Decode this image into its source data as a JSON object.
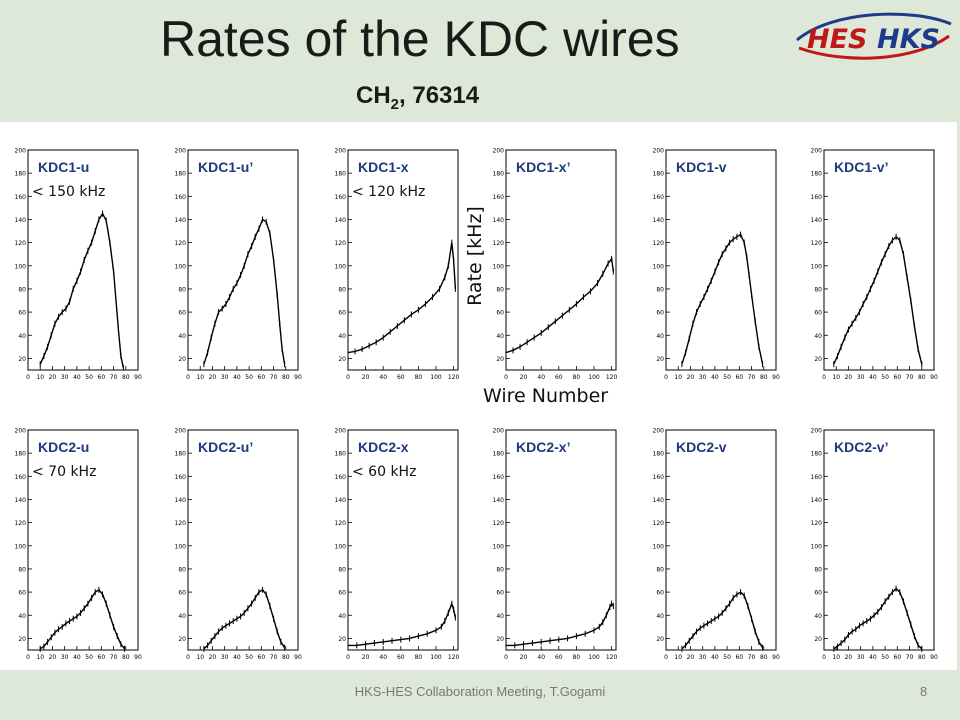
{
  "slide": {
    "title": "Rates of the KDC wires",
    "subtitle_main": "CH",
    "subtitle_sub": "2",
    "subtitle_rest": ", 76314",
    "logo": {
      "left_text": "HES",
      "right_text": "HKS",
      "colors": {
        "red": "#c01818",
        "blue": "#1e3a8a"
      }
    },
    "footer": "HKS-HES Collaboration Meeting, T.Gogami",
    "page_number": "8",
    "axis_ylabel": "Rate [kHz]",
    "axis_xlabel": "Wire Number"
  },
  "colors": {
    "background": "#dde8d8",
    "plot_bg": "#ffffff",
    "label_blue": "#1f3a7a",
    "line": "#000000"
  },
  "chart_data": [
    {
      "type": "line",
      "label": "KDC1-u",
      "note": "< 150 kHz",
      "xlim": [
        0,
        90
      ],
      "xticks": [
        0,
        10,
        20,
        30,
        40,
        50,
        60,
        70,
        80,
        90
      ],
      "ylim": [
        10,
        200
      ],
      "yticks": [
        20,
        40,
        60,
        80,
        100,
        120,
        140,
        160,
        180,
        200
      ],
      "x": [
        10,
        13,
        16,
        19,
        22,
        25,
        28,
        31,
        34,
        37,
        40,
        43,
        46,
        49,
        52,
        55,
        58,
        61,
        64,
        67,
        70,
        72,
        74,
        76,
        78
      ],
      "y": [
        15,
        22,
        30,
        40,
        50,
        56,
        60,
        63,
        69,
        80,
        87,
        95,
        105,
        113,
        120,
        130,
        140,
        145,
        139,
        120,
        95,
        70,
        45,
        22,
        12
      ]
    },
    {
      "type": "line",
      "label": "KDC1-u’",
      "note": "",
      "xlim": [
        0,
        90
      ],
      "xticks": [
        0,
        10,
        20,
        30,
        40,
        50,
        60,
        70,
        80,
        90
      ],
      "ylim": [
        10,
        200
      ],
      "yticks": [
        20,
        40,
        60,
        80,
        100,
        120,
        140,
        160,
        180,
        200
      ],
      "x": [
        13,
        16,
        19,
        22,
        25,
        28,
        31,
        34,
        37,
        40,
        43,
        46,
        49,
        52,
        55,
        58,
        61,
        64,
        67,
        70,
        73,
        75,
        77,
        79
      ],
      "y": [
        15,
        25,
        38,
        50,
        60,
        63,
        67,
        73,
        80,
        85,
        92,
        100,
        110,
        117,
        125,
        132,
        140,
        138,
        128,
        105,
        75,
        50,
        28,
        15
      ]
    },
    {
      "type": "line",
      "label": "KDC1-x",
      "note": "< 120 kHz",
      "xlim": [
        0,
        125
      ],
      "xticks": [
        0,
        20,
        40,
        60,
        80,
        100,
        120
      ],
      "ylim": [
        10,
        200
      ],
      "yticks": [
        20,
        40,
        60,
        80,
        100,
        120,
        140,
        160,
        180,
        200
      ],
      "x": [
        0,
        8,
        16,
        24,
        32,
        40,
        48,
        56,
        64,
        72,
        80,
        88,
        96,
        104,
        110,
        114,
        118,
        120,
        122
      ],
      "y": [
        25,
        26,
        28,
        31,
        34,
        38,
        43,
        48,
        53,
        58,
        62,
        67,
        73,
        80,
        90,
        100,
        120,
        105,
        80
      ]
    },
    {
      "type": "line",
      "label": "KDC1-x’",
      "note": "",
      "xlim": [
        0,
        125
      ],
      "xticks": [
        0,
        20,
        40,
        60,
        80,
        100,
        120
      ],
      "ylim": [
        10,
        200
      ],
      "yticks": [
        20,
        40,
        60,
        80,
        100,
        120,
        140,
        160,
        180,
        200
      ],
      "x": [
        0,
        8,
        16,
        24,
        32,
        40,
        48,
        56,
        64,
        72,
        80,
        88,
        96,
        104,
        110,
        116,
        120,
        122
      ],
      "y": [
        25,
        27,
        30,
        34,
        38,
        42,
        47,
        52,
        57,
        62,
        67,
        73,
        78,
        85,
        93,
        102,
        106,
        95
      ]
    },
    {
      "type": "line",
      "label": "KDC1-v",
      "note": "",
      "xlim": [
        0,
        90
      ],
      "xticks": [
        0,
        10,
        20,
        30,
        40,
        50,
        60,
        70,
        80,
        90
      ],
      "ylim": [
        10,
        200
      ],
      "yticks": [
        20,
        40,
        60,
        80,
        100,
        120,
        140,
        160,
        180,
        200
      ],
      "x": [
        13,
        16,
        19,
        22,
        25,
        28,
        31,
        34,
        37,
        40,
        43,
        46,
        49,
        52,
        55,
        58,
        61,
        64,
        66,
        68,
        70,
        73,
        76,
        79
      ],
      "y": [
        15,
        25,
        37,
        50,
        60,
        67,
        73,
        80,
        87,
        95,
        103,
        110,
        115,
        120,
        123,
        125,
        127,
        120,
        108,
        92,
        75,
        52,
        30,
        15
      ]
    },
    {
      "type": "line",
      "label": "KDC1-v’",
      "note": "",
      "xlim": [
        0,
        90
      ],
      "xticks": [
        0,
        10,
        20,
        30,
        40,
        50,
        60,
        70,
        80,
        90
      ],
      "ylim": [
        10,
        200
      ],
      "yticks": [
        20,
        40,
        60,
        80,
        100,
        120,
        140,
        160,
        180,
        200
      ],
      "x": [
        8,
        11,
        14,
        17,
        20,
        23,
        26,
        29,
        32,
        35,
        38,
        41,
        44,
        47,
        50,
        53,
        56,
        59,
        62,
        65,
        68,
        71,
        74,
        77,
        80
      ],
      "y": [
        15,
        22,
        30,
        38,
        45,
        50,
        55,
        60,
        67,
        73,
        80,
        87,
        95,
        103,
        110,
        117,
        122,
        125,
        122,
        110,
        90,
        70,
        48,
        28,
        15
      ]
    },
    {
      "type": "line",
      "label": "KDC2-u",
      "note": "< 70 kHz",
      "xlim": [
        0,
        90
      ],
      "xticks": [
        0,
        10,
        20,
        30,
        40,
        50,
        60,
        70,
        80,
        90
      ],
      "ylim": [
        10,
        200
      ],
      "yticks": [
        20,
        40,
        60,
        80,
        100,
        120,
        140,
        160,
        180,
        200
      ],
      "x": [
        10,
        13,
        16,
        19,
        22,
        25,
        28,
        31,
        34,
        37,
        40,
        43,
        46,
        49,
        52,
        55,
        58,
        61,
        64,
        67,
        70,
        73,
        76,
        79
      ],
      "y": [
        11,
        13,
        17,
        21,
        25,
        28,
        30,
        33,
        35,
        37,
        39,
        42,
        46,
        50,
        55,
        60,
        62,
        58,
        50,
        40,
        30,
        22,
        15,
        11
      ]
    },
    {
      "type": "line",
      "label": "KDC2-u’",
      "note": "",
      "xlim": [
        0,
        90
      ],
      "xticks": [
        0,
        10,
        20,
        30,
        40,
        50,
        60,
        70,
        80,
        90
      ],
      "ylim": [
        10,
        200
      ],
      "yticks": [
        20,
        40,
        60,
        80,
        100,
        120,
        140,
        160,
        180,
        200
      ],
      "x": [
        13,
        16,
        19,
        22,
        25,
        28,
        31,
        34,
        37,
        40,
        43,
        46,
        49,
        52,
        55,
        58,
        61,
        64,
        67,
        70,
        73,
        76,
        79
      ],
      "y": [
        11,
        14,
        18,
        22,
        26,
        29,
        31,
        33,
        35,
        37,
        39,
        42,
        46,
        50,
        55,
        60,
        62,
        58,
        48,
        37,
        26,
        17,
        12
      ]
    },
    {
      "type": "line",
      "label": "KDC2-x",
      "note": "< 60 kHz",
      "xlim": [
        0,
        125
      ],
      "xticks": [
        0,
        20,
        40,
        60,
        80,
        100,
        120
      ],
      "ylim": [
        10,
        200
      ],
      "yticks": [
        20,
        40,
        60,
        80,
        100,
        120,
        140,
        160,
        180,
        200
      ],
      "x": [
        0,
        10,
        20,
        30,
        40,
        50,
        60,
        70,
        80,
        90,
        100,
        106,
        110,
        114,
        118,
        120,
        122
      ],
      "y": [
        14,
        14,
        15,
        16,
        17,
        18,
        19,
        20,
        22,
        24,
        27,
        30,
        35,
        42,
        50,
        45,
        38
      ]
    },
    {
      "type": "line",
      "label": "KDC2-x’",
      "note": "",
      "xlim": [
        0,
        125
      ],
      "xticks": [
        0,
        20,
        40,
        60,
        80,
        100,
        120
      ],
      "ylim": [
        10,
        200
      ],
      "yticks": [
        20,
        40,
        60,
        80,
        100,
        120,
        140,
        160,
        180,
        200
      ],
      "x": [
        0,
        10,
        20,
        30,
        40,
        50,
        60,
        70,
        80,
        90,
        100,
        106,
        110,
        114,
        118,
        120,
        122
      ],
      "y": [
        14,
        14,
        15,
        16,
        17,
        18,
        19,
        20,
        22,
        24,
        27,
        30,
        34,
        40,
        47,
        50,
        48
      ]
    },
    {
      "type": "line",
      "label": "KDC2-v",
      "note": "",
      "xlim": [
        0,
        90
      ],
      "xticks": [
        0,
        10,
        20,
        30,
        40,
        50,
        60,
        70,
        80,
        90
      ],
      "ylim": [
        10,
        200
      ],
      "yticks": [
        20,
        40,
        60,
        80,
        100,
        120,
        140,
        160,
        180,
        200
      ],
      "x": [
        13,
        16,
        19,
        22,
        25,
        28,
        31,
        34,
        37,
        40,
        43,
        46,
        49,
        52,
        55,
        58,
        61,
        64,
        67,
        70,
        73,
        76,
        79
      ],
      "y": [
        11,
        14,
        18,
        22,
        26,
        29,
        31,
        33,
        35,
        37,
        39,
        42,
        46,
        50,
        55,
        58,
        60,
        57,
        48,
        37,
        26,
        17,
        12
      ]
    },
    {
      "type": "line",
      "label": "KDC2-v’",
      "note": "",
      "xlim": [
        0,
        90
      ],
      "xticks": [
        0,
        10,
        20,
        30,
        40,
        50,
        60,
        70,
        80,
        90
      ],
      "ylim": [
        10,
        200
      ],
      "yticks": [
        20,
        40,
        60,
        80,
        100,
        120,
        140,
        160,
        180,
        200
      ],
      "x": [
        8,
        11,
        14,
        17,
        20,
        23,
        26,
        29,
        32,
        35,
        38,
        41,
        44,
        47,
        50,
        53,
        56,
        59,
        62,
        65,
        68,
        71,
        74,
        77,
        80
      ],
      "y": [
        11,
        13,
        16,
        19,
        23,
        26,
        28,
        31,
        33,
        35,
        37,
        40,
        43,
        47,
        52,
        56,
        60,
        63,
        60,
        52,
        42,
        32,
        22,
        14,
        11
      ]
    }
  ]
}
